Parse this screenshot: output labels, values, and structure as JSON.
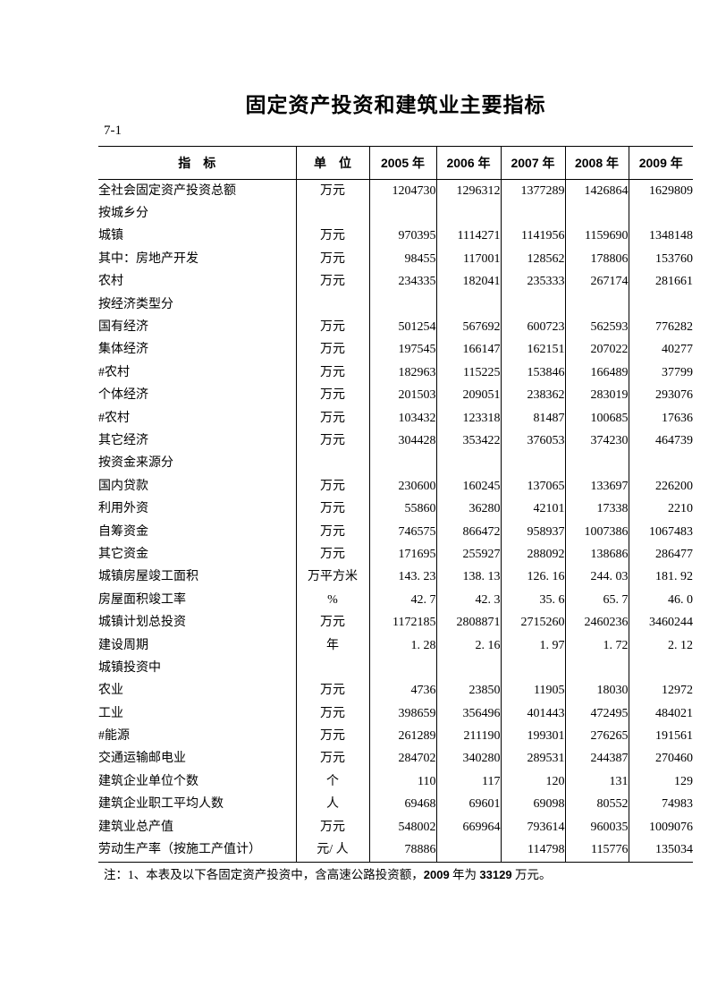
{
  "title": "固定资产投资和建筑业主要指标",
  "table_number": "7-1",
  "table": {
    "columns": [
      "指　标",
      "单　位",
      "2005 年",
      "2006 年",
      "2007 年",
      "2008 年",
      "2009 年"
    ],
    "rows": [
      {
        "label": "全社会固定资产投资总额",
        "indent": 0,
        "unit": "万元",
        "values": [
          "1204730",
          "1296312",
          "1377289",
          "1426864",
          "1629809"
        ]
      },
      {
        "label": "按城乡分",
        "indent": 1,
        "unit": "",
        "values": [
          "",
          "",
          "",
          "",
          ""
        ]
      },
      {
        "label": "城镇",
        "indent": 2,
        "unit": "万元",
        "values": [
          "970395",
          "1114271",
          "1141956",
          "1159690",
          "1348148"
        ]
      },
      {
        "label": "其中：房地产开发",
        "indent": 2,
        "unit": "万元",
        "values": [
          "98455",
          "117001",
          "128562",
          "178806",
          "153760"
        ]
      },
      {
        "label": "农村",
        "indent": 2,
        "unit": "万元",
        "values": [
          "234335",
          "182041",
          "235333",
          "267174",
          "281661"
        ]
      },
      {
        "label": "按经济类型分",
        "indent": 1,
        "unit": "",
        "values": [
          "",
          "",
          "",
          "",
          ""
        ]
      },
      {
        "label": "国有经济",
        "indent": 2,
        "unit": "万元",
        "values": [
          "501254",
          "567692",
          "600723",
          "562593",
          "776282"
        ]
      },
      {
        "label": "集体经济",
        "indent": 2,
        "unit": "万元",
        "values": [
          "197545",
          "166147",
          "162151",
          "207022",
          "40277"
        ]
      },
      {
        "label": "#农村",
        "indent": 3,
        "unit": "万元",
        "values": [
          "182963",
          "115225",
          "153846",
          "166489",
          "37799"
        ]
      },
      {
        "label": "个体经济",
        "indent": 2,
        "unit": "万元",
        "values": [
          "201503",
          "209051",
          "238362",
          "283019",
          "293076"
        ]
      },
      {
        "label": "#农村",
        "indent": 3,
        "unit": "万元",
        "values": [
          "103432",
          "123318",
          "81487",
          "100685",
          "17636"
        ]
      },
      {
        "label": "其它经济",
        "indent": 2,
        "unit": "万元",
        "values": [
          "304428",
          "353422",
          "376053",
          "374230",
          "464739"
        ]
      },
      {
        "label": "按资金来源分",
        "indent": 1,
        "unit": "",
        "values": [
          "",
          "",
          "",
          "",
          ""
        ]
      },
      {
        "label": "国内贷款",
        "indent": 2,
        "unit": "万元",
        "values": [
          "230600",
          "160245",
          "137065",
          "133697",
          "226200"
        ]
      },
      {
        "label": "利用外资",
        "indent": 2,
        "unit": "万元",
        "values": [
          "55860",
          "36280",
          "42101",
          "17338",
          "2210"
        ]
      },
      {
        "label": "自筹资金",
        "indent": 2,
        "unit": "万元",
        "values": [
          "746575",
          "866472",
          "958937",
          "1007386",
          "1067483"
        ]
      },
      {
        "label": "其它资金",
        "indent": 2,
        "unit": "万元",
        "values": [
          "171695",
          "255927",
          "288092",
          "138686",
          "286477"
        ]
      },
      {
        "label": "城镇房屋竣工面积",
        "indent": 0,
        "unit": "万平方米",
        "values": [
          "143. 23",
          "138. 13",
          "126. 16",
          "244. 03",
          "181. 92"
        ]
      },
      {
        "label": "房屋面积竣工率",
        "indent": 1,
        "unit": "%",
        "values": [
          "42. 7",
          "42. 3",
          "35. 6",
          "65. 7",
          "46. 0"
        ]
      },
      {
        "label": "城镇计划总投资",
        "indent": 0,
        "unit": "万元",
        "values": [
          "1172185",
          "2808871",
          "2715260",
          "2460236",
          "3460244"
        ]
      },
      {
        "label": "建设周期",
        "indent": 1,
        "unit": "年",
        "values": [
          "1. 28",
          "2. 16",
          "1. 97",
          "1. 72",
          "2. 12"
        ]
      },
      {
        "label": "城镇投资中",
        "indent": 0,
        "unit": "",
        "values": [
          "",
          "",
          "",
          "",
          ""
        ]
      },
      {
        "label": "农业",
        "indent": 1,
        "unit": "万元",
        "values": [
          "4736",
          "23850",
          "11905",
          "18030",
          "12972"
        ]
      },
      {
        "label": "工业",
        "indent": 1,
        "unit": "万元",
        "values": [
          "398659",
          "356496",
          "401443",
          "472495",
          "484021"
        ]
      },
      {
        "label": "#能源",
        "indent": 3,
        "unit": "万元",
        "values": [
          "261289",
          "211190",
          "199301",
          "276265",
          "191561"
        ]
      },
      {
        "label": "交通运输邮电业",
        "indent": 1,
        "unit": "万元",
        "values": [
          "284702",
          "340280",
          "289531",
          "244387",
          "270460"
        ]
      },
      {
        "label": "建筑企业单位个数",
        "indent": 0,
        "unit": "个",
        "values": [
          "110",
          "117",
          "120",
          "131",
          "129"
        ]
      },
      {
        "label": "建筑企业职工平均人数",
        "indent": 0,
        "unit": "人",
        "values": [
          "69468",
          "69601",
          "69098",
          "80552",
          "74983"
        ]
      },
      {
        "label": "建筑业总产值",
        "indent": 0,
        "unit": "万元",
        "values": [
          "548002",
          "669964",
          "793614",
          "960035",
          "1009076"
        ]
      },
      {
        "label": "劳动生产率（按施工产值计）",
        "indent": 0,
        "unit": "元/ 人",
        "values": [
          "78886",
          "",
          "114798",
          "115776",
          "135034"
        ]
      }
    ]
  },
  "footnote": {
    "prefix": "注：1、本表及以下各固定资产投资中，含高速公路投资额，",
    "year": "2009",
    "mid": " 年为 ",
    "amount": "33129",
    "suffix": " 万元。"
  }
}
